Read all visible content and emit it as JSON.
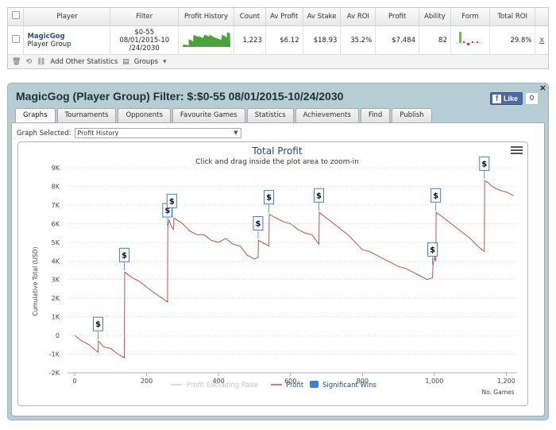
{
  "summary": {
    "headers": [
      "Player",
      "Filter",
      "Profit History",
      "Count",
      "Av Profit",
      "Av Stake",
      "Av ROI",
      "Profit",
      "Ability",
      "Form",
      "Total ROI"
    ],
    "row": {
      "player_name": "MagicGog",
      "player_group": "Player Group",
      "filter_line1": "$0-55",
      "filter_line2": "08/01/2015-10",
      "filter_line3": "/24/2030",
      "count": "1,223",
      "av_profit": "$6.12",
      "av_stake": "$18.93",
      "av_roi": "35.2%",
      "profit": "$7,484",
      "ability": "82",
      "total_roi": "29.8%",
      "remove": "x"
    },
    "toolbar": {
      "add_stats": "Add Other Statistics",
      "groups": "Groups"
    },
    "sparkline_color": "#4aa33a"
  },
  "panel": {
    "title": "MagicGog (Player Group) Filter: $:$0-55 08/01/2015-10/24/2030",
    "like_label": "Like",
    "like_count": "0",
    "close": "×",
    "tabs": [
      "Graphs",
      "Tournaments",
      "Opponents",
      "Favourite Games",
      "Statistics",
      "Achievements",
      "Find",
      "Publish"
    ],
    "active_tab": "Graphs",
    "graph_selected_label": "Graph Selected:",
    "graph_selected_value": "Profit History"
  },
  "chart_data": {
    "type": "line",
    "title": "Total Profit",
    "subtitle": "Click and drag inside the plot area to zoom-in",
    "ylabel": "Cumulative Total (USD)",
    "xlabel": "No. Games",
    "xlim": [
      -20,
      1230
    ],
    "ylim": [
      -2000,
      9000
    ],
    "x_ticks": [
      0,
      200,
      400,
      600,
      800,
      1000,
      1200
    ],
    "x_tick_labels": [
      "0",
      "200",
      "400",
      "600",
      "800",
      "1,000",
      "1,200"
    ],
    "y_ticks": [
      -2000,
      -1000,
      0,
      1000,
      2000,
      3000,
      4000,
      5000,
      6000,
      7000,
      8000,
      9000
    ],
    "y_tick_labels": [
      "-2K",
      "-1K",
      "0",
      "1K",
      "2K",
      "3K",
      "4K",
      "5K",
      "6K",
      "7K",
      "8K",
      "9K"
    ],
    "grid": "horizontal-dotted",
    "legend_position": "bottom-center",
    "colors": {
      "profit": "#c0504d",
      "excluding_rake": "#cfcfcf",
      "significant_wins": "#3a7fd5"
    },
    "series": [
      {
        "name": "Profit",
        "x": [
          0,
          20,
          40,
          65,
          66,
          80,
          100,
          120,
          138,
          139,
          160,
          180,
          200,
          220,
          258,
          259,
          262,
          270,
          275,
          276,
          300,
          320,
          340,
          360,
          380,
          400,
          420,
          440,
          460,
          480,
          500,
          510,
          511,
          540,
          541,
          560,
          580,
          600,
          620,
          640,
          660,
          679,
          680,
          700,
          720,
          740,
          760,
          780,
          800,
          820,
          840,
          860,
          880,
          900,
          920,
          940,
          960,
          980,
          995,
          996,
          1000,
          1004,
          1005,
          1020,
          1040,
          1060,
          1080,
          1100,
          1120,
          1139,
          1140,
          1150,
          1160,
          1170,
          1180,
          1200,
          1220
        ],
        "y": [
          0,
          -300,
          -500,
          -900,
          -300,
          -600,
          -700,
          -1000,
          -1200,
          3400,
          3100,
          2900,
          2600,
          2300,
          1800,
          5800,
          6200,
          5800,
          5700,
          6300,
          6000,
          5600,
          5400,
          5400,
          5100,
          5000,
          5200,
          4900,
          4800,
          4300,
          4100,
          4200,
          5100,
          4800,
          6500,
          6300,
          6100,
          6000,
          5700,
          5500,
          5400,
          4900,
          6600,
          6300,
          6000,
          5700,
          5400,
          5000,
          4600,
          4500,
          4300,
          4100,
          3900,
          3700,
          3600,
          3400,
          3200,
          3000,
          3100,
          3700,
          4200,
          4000,
          6600,
          6400,
          6100,
          5800,
          5500,
          5200,
          4800,
          4500,
          8300,
          8200,
          8000,
          7900,
          7800,
          7700,
          7500
        ]
      },
      {
        "name": "Significant Wins",
        "x": [
          65,
          138,
          258,
          270,
          510,
          540,
          679,
          995,
          1004,
          1139
        ],
        "y": [
          -300,
          3400,
          5800,
          6300,
          5100,
          6500,
          6600,
          3700,
          6600,
          8300
        ]
      }
    ],
    "legend": [
      "Profit Excluding Rake",
      "Profit",
      "Significant Wins"
    ],
    "win_marker_symbol": "$"
  }
}
